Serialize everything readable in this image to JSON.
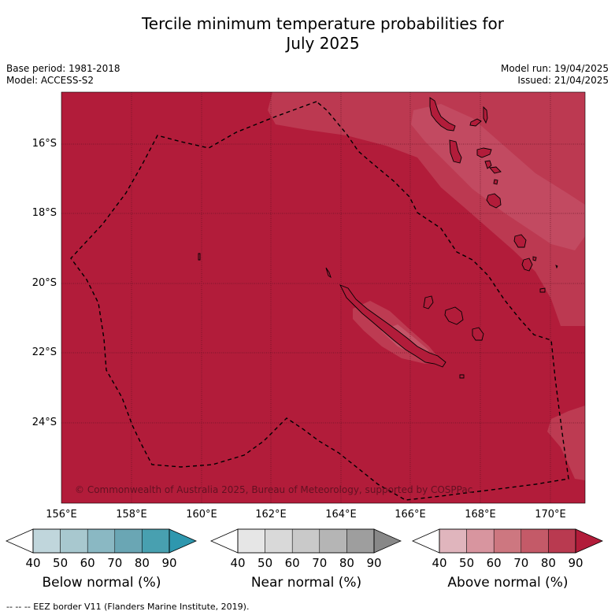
{
  "title": {
    "line1": "Tercile minimum temperature probabilities for",
    "line2": "July 2025"
  },
  "meta_left": {
    "base_period": "Base period: 1981-2018",
    "model": "Model: ACCESS-S2"
  },
  "meta_right": {
    "model_run": "Model run: 19/04/2025",
    "issued": "Issued: 21/04/2025"
  },
  "map": {
    "lat_labels": [
      "16°S",
      "18°S",
      "20°S",
      "22°S",
      "24°S"
    ],
    "lon_labels": [
      "156°E",
      "158°E",
      "160°E",
      "162°E",
      "164°E",
      "166°E",
      "168°E",
      "170°E"
    ],
    "copyright": "© Commonwealth of Australia 2025, Bureau of Meteorology, supported by COSPPac",
    "base_color": "#b21c3a",
    "light_color": "#bd3a52",
    "lighter_color": "#c24c63",
    "border_style": "dashed black"
  },
  "colorbars": [
    {
      "label": "Below normal (%)",
      "ticks": [
        "40",
        "50",
        "60",
        "70",
        "80",
        "90"
      ],
      "colors": [
        "#c0d6dc",
        "#a8c8cf",
        "#8ab8c3",
        "#6aa6b4",
        "#48a0b0",
        "#2e97ae"
      ]
    },
    {
      "label": "Near normal (%)",
      "ticks": [
        "40",
        "50",
        "60",
        "70",
        "80",
        "90"
      ],
      "colors": [
        "#e6e6e6",
        "#d9d9d9",
        "#c9c9c9",
        "#b5b5b5",
        "#9e9e9e",
        "#888888"
      ]
    },
    {
      "label": "Above normal (%)",
      "ticks": [
        "40",
        "50",
        "60",
        "70",
        "80",
        "90"
      ],
      "colors": [
        "#e0b5bd",
        "#d8959f",
        "#cd7780",
        "#c45a68",
        "#b93a50",
        "#b21c3a"
      ]
    }
  ],
  "footnote": "--  --  -- EEZ border V11 (Flanders Marine Institute, 2019)."
}
